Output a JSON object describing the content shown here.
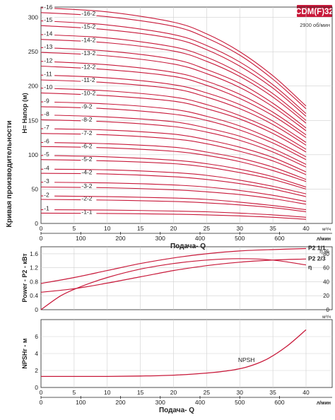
{
  "colors": {
    "curve": "#c8193a",
    "badge": "#c8193a",
    "grid": "#cfcfcf",
    "axis": "#222222",
    "text": "#222222"
  },
  "model": "CDM(F)32",
  "speed": "2900 об/мин",
  "ylabel_global": "Кривая производительности",
  "flow_unit_m3h": "м³/ч",
  "flow_unit_lmin": "л/мин",
  "chart_data": [
    {
      "type": "line",
      "title": "",
      "xlabel": "Подача- Q",
      "ylabel": "H= Напор (м)",
      "xlim": [
        0,
        40
      ],
      "ylim": [
        0,
        315
      ],
      "x_ticks": [
        0,
        5,
        10,
        15,
        20,
        25,
        30,
        35,
        40
      ],
      "y_ticks": [
        0,
        50,
        100,
        150,
        200,
        250,
        300
      ],
      "x2_ticks": [
        0,
        100,
        200,
        300,
        400,
        500,
        600
      ],
      "x2_unit": "л/мин",
      "x_unit": "м³/ч",
      "grid": true,
      "legend": "none",
      "series": [
        {
          "name": "-1-1",
          "x": [
            0,
            10,
            20,
            25,
            30,
            35,
            40
          ],
          "y": [
            15,
            14.5,
            13.5,
            12.5,
            11,
            9,
            6
          ]
        },
        {
          "name": "-1",
          "x": [
            0,
            10,
            20,
            25,
            30,
            35,
            40
          ],
          "y": [
            20,
            19.5,
            18,
            17,
            15,
            12.5,
            9
          ]
        },
        {
          "name": "-2-2",
          "x": [
            0,
            10,
            20,
            25,
            30,
            35,
            40
          ],
          "y": [
            35,
            34,
            32,
            30,
            27,
            23,
            17
          ]
        },
        {
          "name": "-2",
          "x": [
            0,
            10,
            20,
            25,
            30,
            35,
            40
          ],
          "y": [
            40,
            39,
            37,
            35,
            31,
            26,
            20
          ]
        },
        {
          "name": "-3-2",
          "x": [
            0,
            10,
            20,
            25,
            30,
            35,
            40
          ],
          "y": [
            53,
            52,
            49,
            46,
            42,
            36,
            28
          ]
        },
        {
          "name": "-3",
          "x": [
            0,
            10,
            20,
            25,
            30,
            35,
            40
          ],
          "y": [
            60,
            59,
            56,
            53,
            48,
            41,
            32
          ]
        },
        {
          "name": "-4-2",
          "x": [
            0,
            10,
            20,
            25,
            30,
            35,
            40
          ],
          "y": [
            73,
            72,
            68,
            64,
            58,
            50,
            39
          ]
        },
        {
          "name": "-4",
          "x": [
            0,
            10,
            20,
            25,
            30,
            35,
            40
          ],
          "y": [
            79,
            78,
            74,
            70,
            63,
            54,
            43
          ]
        },
        {
          "name": "-5-2",
          "x": [
            0,
            10,
            20,
            25,
            30,
            35,
            40
          ],
          "y": [
            93,
            91,
            87,
            82,
            74,
            64,
            50
          ]
        },
        {
          "name": "-5",
          "x": [
            0,
            10,
            20,
            25,
            30,
            35,
            40
          ],
          "y": [
            99,
            97,
            92,
            87,
            79,
            68,
            53
          ]
        },
        {
          "name": "-6-2",
          "x": [
            0,
            10,
            20,
            25,
            30,
            35,
            40
          ],
          "y": [
            112,
            110,
            105,
            99,
            90,
            77,
            61
          ]
        },
        {
          "name": "-6",
          "x": [
            0,
            10,
            20,
            25,
            30,
            35,
            40
          ],
          "y": [
            118,
            116,
            111,
            104,
            95,
            82,
            64
          ]
        },
        {
          "name": "-7-2",
          "x": [
            0,
            10,
            20,
            25,
            30,
            35,
            40
          ],
          "y": [
            131,
            129,
            123,
            116,
            105,
            91,
            71
          ]
        },
        {
          "name": "-7",
          "x": [
            0,
            10,
            20,
            25,
            30,
            35,
            40
          ],
          "y": [
            138,
            136,
            130,
            122,
            111,
            96,
            75
          ]
        },
        {
          "name": "-8-2",
          "x": [
            0,
            10,
            20,
            25,
            30,
            35,
            40
          ],
          "y": [
            151,
            148,
            141,
            133,
            121,
            104,
            82
          ]
        },
        {
          "name": "-8",
          "x": [
            0,
            10,
            20,
            25,
            30,
            35,
            40
          ],
          "y": [
            158,
            155,
            148,
            139,
            127,
            109,
            86
          ]
        },
        {
          "name": "-9-2",
          "x": [
            0,
            10,
            20,
            25,
            30,
            35,
            40
          ],
          "y": [
            170,
            167,
            159,
            150,
            136,
            117,
            93
          ]
        },
        {
          "name": "-9",
          "x": [
            0,
            10,
            20,
            25,
            30,
            35,
            40
          ],
          "y": [
            177,
            174,
            166,
            156,
            142,
            122,
            97
          ]
        },
        {
          "name": "-10-2",
          "x": [
            0,
            10,
            20,
            25,
            30,
            35,
            40
          ],
          "y": [
            190,
            186,
            178,
            167,
            152,
            131,
            104
          ]
        },
        {
          "name": "-10",
          "x": [
            0,
            10,
            20,
            25,
            30,
            35,
            40
          ],
          "y": [
            197,
            193,
            184,
            173,
            157,
            136,
            108
          ]
        },
        {
          "name": "-11-2",
          "x": [
            0,
            10,
            20,
            25,
            30,
            35,
            40
          ],
          "y": [
            209,
            205,
            196,
            184,
            167,
            144,
            114
          ]
        },
        {
          "name": "-11",
          "x": [
            0,
            10,
            20,
            25,
            30,
            35,
            40
          ],
          "y": [
            216,
            212,
            202,
            190,
            173,
            149,
            118
          ]
        },
        {
          "name": "-12-2",
          "x": [
            0,
            10,
            20,
            25,
            30,
            35,
            40
          ],
          "y": [
            229,
            224,
            214,
            201,
            182,
            157,
            125
          ]
        },
        {
          "name": "-12",
          "x": [
            0,
            10,
            20,
            25,
            30,
            35,
            40
          ],
          "y": [
            236,
            231,
            220,
            207,
            188,
            162,
            129
          ]
        },
        {
          "name": "-13-2",
          "x": [
            0,
            10,
            20,
            25,
            30,
            35,
            40
          ],
          "y": [
            249,
            244,
            232,
            218,
            198,
            170,
            135
          ]
        },
        {
          "name": "-13",
          "x": [
            0,
            10,
            20,
            25,
            30,
            35,
            40
          ],
          "y": [
            256,
            251,
            239,
            224,
            204,
            175,
            139
          ]
        },
        {
          "name": "-14-2",
          "x": [
            0,
            10,
            20,
            25,
            30,
            35,
            40
          ],
          "y": [
            268,
            263,
            251,
            236,
            214,
            184,
            146
          ]
        },
        {
          "name": "-14",
          "x": [
            0,
            10,
            20,
            25,
            30,
            35,
            40
          ],
          "y": [
            275,
            270,
            257,
            242,
            219,
            189,
            150
          ]
        },
        {
          "name": "-15-2",
          "x": [
            0,
            10,
            20,
            25,
            30,
            35,
            40
          ],
          "y": [
            288,
            282,
            269,
            253,
            229,
            197,
            156
          ]
        },
        {
          "name": "-15",
          "x": [
            0,
            10,
            20,
            25,
            30,
            35,
            40
          ],
          "y": [
            295,
            289,
            275,
            259,
            235,
            202,
            160
          ]
        },
        {
          "name": "-16-2",
          "x": [
            0,
            10,
            20,
            25,
            30,
            35,
            40
          ],
          "y": [
            307,
            301,
            287,
            270,
            245,
            210,
            167
          ]
        },
        {
          "name": "-16",
          "x": [
            0,
            10,
            20,
            25,
            30,
            35,
            40
          ],
          "y": [
            314,
            308,
            293,
            276,
            250,
            215,
            171
          ]
        }
      ]
    },
    {
      "type": "line",
      "title": "",
      "xlabel": "",
      "ylabel": "Power - P2 - кВт",
      "y2label": "η %",
      "xlim": [
        0,
        40
      ],
      "ylim": [
        0,
        1.8
      ],
      "y2lim": [
        0,
        90
      ],
      "y_ticks": [
        0,
        0.4,
        0.8,
        1.2,
        1.6
      ],
      "y2_ticks": [
        0,
        20,
        40,
        60,
        80
      ],
      "grid": true,
      "legend": "none",
      "series": [
        {
          "name": "P2 1/1",
          "axis": "left",
          "x": [
            0,
            5,
            10,
            15,
            20,
            25,
            30,
            35,
            40
          ],
          "y": [
            0.75,
            0.92,
            1.12,
            1.32,
            1.48,
            1.6,
            1.68,
            1.72,
            1.75
          ]
        },
        {
          "name": "P2 2/3",
          "axis": "left",
          "x": [
            0,
            5,
            10,
            15,
            20,
            25,
            30,
            35,
            40
          ],
          "y": [
            0.5,
            0.6,
            0.76,
            0.94,
            1.12,
            1.26,
            1.36,
            1.42,
            1.45
          ]
        },
        {
          "name": "η",
          "axis": "right",
          "x": [
            0,
            3,
            6,
            10,
            15,
            20,
            25,
            30,
            35,
            40
          ],
          "y": [
            0,
            20,
            33,
            46,
            58,
            66,
            71,
            73,
            71,
            64
          ]
        }
      ]
    },
    {
      "type": "line",
      "title": "",
      "xlabel": "Подача- Q",
      "ylabel": "NPSHr - м",
      "xlim": [
        0,
        40
      ],
      "ylim": [
        0,
        8
      ],
      "x_ticks": [
        0,
        5,
        10,
        15,
        20,
        25,
        30,
        35,
        40
      ],
      "y_ticks": [
        0,
        2,
        4,
        6
      ],
      "x2_ticks": [
        0,
        100,
        200,
        300,
        400,
        500,
        600
      ],
      "x_unit": "м³/ч",
      "x2_unit": "л/мин",
      "grid": true,
      "legend": "none",
      "series": [
        {
          "name": "NPSH",
          "x": [
            0,
            5,
            10,
            15,
            20,
            25,
            28,
            31,
            34,
            37,
            40
          ],
          "y": [
            1.3,
            1.3,
            1.3,
            1.35,
            1.45,
            1.7,
            1.95,
            2.4,
            3.3,
            4.8,
            6.8
          ]
        }
      ]
    }
  ]
}
